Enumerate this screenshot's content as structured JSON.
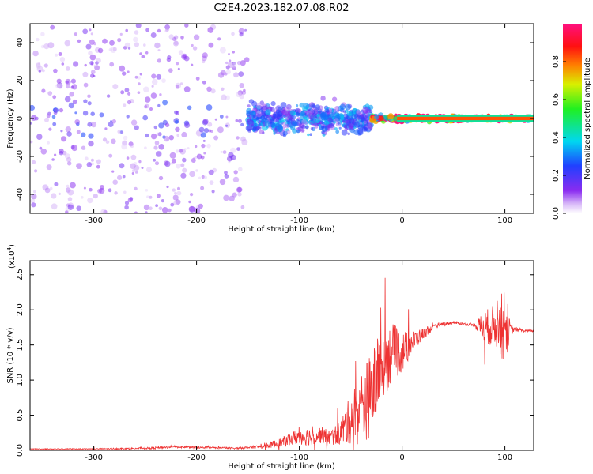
{
  "chart_data": [
    {
      "type": "heatmap",
      "title": "C2E4.2023.182.07.08.R02",
      "xlabel": "Height of straight line (km)",
      "ylabel": "Frequency (Hz)",
      "xlim": [
        -362,
        128
      ],
      "ylim": [
        -50,
        50
      ],
      "xticks": [
        -300,
        -200,
        -100,
        0,
        100
      ],
      "yticks": [
        -40,
        -20,
        0,
        20,
        40
      ],
      "xtick_labels": [
        "-300",
        "-200",
        "-100",
        "0",
        "100"
      ],
      "ytick_labels": [
        "-40",
        "-20",
        "0",
        "20",
        "40"
      ],
      "colorbar": {
        "label": "Normalized spectral amplitude",
        "range": [
          0.0,
          1.0
        ],
        "ticks": [
          0.0,
          0.2,
          0.4,
          0.6,
          0.8
        ],
        "tick_labels": [
          "0.0",
          "0.2",
          "0.4",
          "0.6",
          "0.8"
        ],
        "colormap": "rainbow (white to purple to blue to cyan to green to yellow to red to magenta)"
      },
      "description_regions": [
        {
          "x_range": [
            -362,
            -150
          ],
          "freq_spread": 50,
          "amplitude": 0.1
        },
        {
          "x_range": [
            -150,
            -30
          ],
          "freq_spread": 12,
          "amplitude": 0.25
        },
        {
          "x_range": [
            -30,
            128
          ],
          "freq_spread": 2,
          "amplitude": 0.85
        }
      ]
    },
    {
      "type": "line",
      "title": "",
      "xlabel": "Height of straight line (km)",
      "ylabel": "SNR (10 * v/v)",
      "y_scale_label": "(x10",
      "y_scale_exponent": "4",
      "y_scale_suffix": ")",
      "xlim": [
        -362,
        128
      ],
      "ylim": [
        0,
        2.7
      ],
      "xticks": [
        -300,
        -200,
        -100,
        0,
        100
      ],
      "yticks": [
        0.0,
        0.5,
        1.0,
        1.5,
        2.0,
        2.5
      ],
      "xtick_labels": [
        "-300",
        "-200",
        "-100",
        "0",
        "100"
      ],
      "ytick_labels": [
        "0.0",
        "0.5",
        "1.0",
        "1.5",
        "2.0",
        "2.5"
      ],
      "series": [
        {
          "name": "SNR",
          "color": "#ee3333",
          "x": [
            -362,
            -300,
            -250,
            -220,
            -200,
            -160,
            -140,
            -120,
            -110,
            -100,
            -90,
            -80,
            -70,
            -60,
            -50,
            -40,
            -30,
            -20,
            -10,
            0,
            10,
            20,
            30,
            40,
            50,
            60,
            70,
            80,
            90,
            95,
            100,
            105,
            110,
            120,
            128
          ],
          "values": [
            0.02,
            0.02,
            0.03,
            0.05,
            0.04,
            0.03,
            0.05,
            0.1,
            0.15,
            0.2,
            0.2,
            0.22,
            0.18,
            0.25,
            0.45,
            0.6,
            0.8,
            1.2,
            1.4,
            1.4,
            1.55,
            1.65,
            1.75,
            1.8,
            1.82,
            1.8,
            1.78,
            1.75,
            1.78,
            1.75,
            1.8,
            1.72,
            1.72,
            1.7,
            1.7
          ],
          "spike_amplitude": [
            0.01,
            0.01,
            0.02,
            0.03,
            0.02,
            0.02,
            0.04,
            0.1,
            0.15,
            0.2,
            0.22,
            0.2,
            0.18,
            0.3,
            0.6,
            0.9,
            1.0,
            0.9,
            0.7,
            0.5,
            0.25,
            0.15,
            0.05,
            0.05,
            0.03,
            0.03,
            0.03,
            0.4,
            0.5,
            0.6,
            1.1,
            0.15,
            0.05,
            0.03,
            0.03
          ]
        }
      ]
    }
  ]
}
